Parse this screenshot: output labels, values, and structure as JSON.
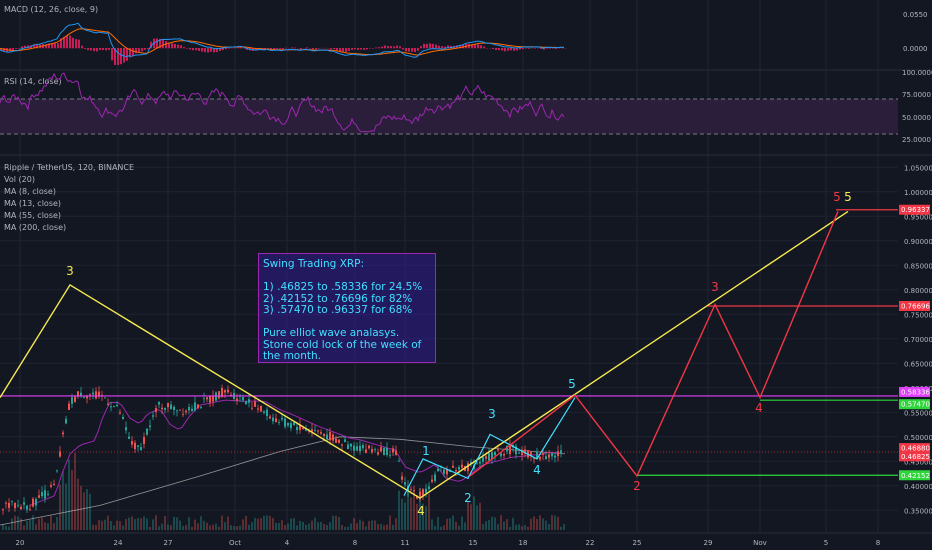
{
  "colors": {
    "background": "#131722",
    "grid": "#1f2433",
    "text": "#b2b5be",
    "macd_line": "#2196f3",
    "signal_line": "#ff6d00",
    "histogram": "#e91e63",
    "rsi_line": "#9c27b0",
    "rsi_band": "#2a1e3a",
    "candle_up": "#26a69a",
    "candle_down": "#ef5350",
    "magenta_line": "#e040fb",
    "yellow": "#f5e94f",
    "cyan": "#40e0ff",
    "red": "#f23645",
    "green": "#2fd63b",
    "ma_purple": "#9c27b0",
    "ma_gray": "#bfbfbf"
  },
  "macd": {
    "label": "MACD (12, 26, close, 9)",
    "ticks": [
      "0.0550",
      "0.0000"
    ]
  },
  "rsi": {
    "label": "RSI (14, close)",
    "ticks": [
      "100.0000",
      "75.0000",
      "50.0000",
      "25.0000"
    ],
    "upper_band": 70,
    "lower_band": 30
  },
  "main": {
    "legend": [
      "Ripple / TetherUS, 120, BINANCE",
      "Vol (20)",
      "MA (8, close)",
      "MA (13, close)",
      "MA (55, close)",
      "MA (200, close)"
    ],
    "price_ticks": [
      "1.05000",
      "1.00000",
      "0.95000",
      "0.90000",
      "0.85000",
      "0.80000",
      "0.75000",
      "0.70000",
      "0.65000",
      "0.60000",
      "0.55000",
      "0.50000",
      "0.45000",
      "0.40000",
      "0.35000"
    ],
    "price_tags": [
      {
        "text": "0.96337",
        "value": 0.96337,
        "color": "#f23645"
      },
      {
        "text": "0.76696",
        "value": 0.76696,
        "color": "#f23645"
      },
      {
        "text": "0.58336",
        "value": 0.58336,
        "color": "#e040fb"
      },
      {
        "text": "0.57470",
        "value": 0.5747,
        "color": "#2fd63b"
      },
      {
        "text": "0.46880",
        "value": 0.4688,
        "color": "#f23645"
      },
      {
        "text": "0.46825",
        "value": 0.46825,
        "color": "#f23645"
      },
      {
        "text": "0.42152",
        "value": 0.42152,
        "color": "#2fd63b"
      }
    ],
    "date_ticks": [
      "20",
      "24",
      "27",
      "Oct",
      "4",
      "8",
      "11",
      "15",
      "18",
      "22",
      "25",
      "29",
      "Nov",
      "5",
      "8"
    ]
  },
  "info_box": {
    "lines": [
      "Swing Trading XRP:",
      "",
      "1) .46825 to .58336 for 24.5%",
      "2) .42152 to .76696 for 82%",
      "3) .57470 to .96337 for 68%",
      "",
      "Pure elliot wave analasys.",
      "Stone cold lock of the week of",
      "the month."
    ]
  },
  "wave_labels": {
    "yellow": [
      "3",
      "4",
      "5"
    ],
    "cyan": [
      "1",
      "2",
      "3",
      "4",
      "5"
    ],
    "red": [
      "2",
      "3",
      "4",
      "5"
    ]
  },
  "chart_data": {
    "type": "line",
    "title": "Ripple / TetherUS, 120, BINANCE",
    "x_axis": [
      "20",
      "24",
      "27",
      "Oct",
      "4",
      "8",
      "11",
      "15",
      "18",
      "22",
      "25",
      "29",
      "Nov",
      "5",
      "8"
    ],
    "ylim": [
      0.32,
      1.05
    ],
    "horizontal_levels": [
      {
        "value": 0.58336,
        "color": "#e040fb"
      },
      {
        "value": 0.5747,
        "color": "#2fd63b"
      },
      {
        "value": 0.42152,
        "color": "#2fd63b"
      },
      {
        "value": 0.96337,
        "color": "#f23645"
      },
      {
        "value": 0.76696,
        "color": "#f23645"
      }
    ],
    "price_path": [
      [
        "20",
        0.37
      ],
      [
        "20",
        0.59
      ],
      [
        "24",
        0.47
      ],
      [
        "27",
        0.56
      ],
      [
        "Oct",
        0.59
      ],
      [
        "Oct",
        0.53
      ],
      [
        "8",
        0.47
      ],
      [
        "11",
        0.38
      ],
      [
        "15",
        0.44
      ],
      [
        "18",
        0.47
      ]
    ],
    "series": [
      {
        "color": "#f5e94f",
        "points": [
          [
            "20",
            0.81
          ],
          [
            "11",
            0.37
          ],
          [
            "5",
            0.96
          ]
        ],
        "labels": [
          "3",
          "4",
          "5"
        ]
      },
      {
        "color": "#40e0ff",
        "points": [
          [
            "11",
            0.46
          ],
          [
            "15",
            0.4
          ],
          [
            "15",
            0.5
          ],
          [
            "18",
            0.46
          ],
          [
            "22",
            0.58
          ]
        ],
        "labels": [
          "1",
          "2",
          "3",
          "4",
          "5"
        ]
      },
      {
        "color": "#f23645",
        "points": [
          [
            "15",
            0.44
          ],
          [
            "22",
            0.58
          ],
          [
            "25",
            0.42
          ],
          [
            "29",
            0.77
          ],
          [
            "Nov",
            0.58
          ],
          [
            "5",
            0.96
          ]
        ],
        "labels": [
          "2",
          "3",
          "4",
          "5"
        ]
      }
    ]
  }
}
